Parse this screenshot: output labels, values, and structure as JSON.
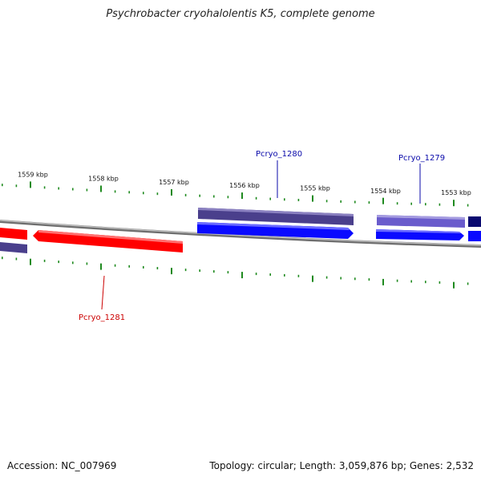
{
  "title": "Psychrobacter cryohalolentis K5, complete genome",
  "accession_text": "Accession: NC_007969",
  "summary_text": "Topology: circular; Length: 3,059,876 bp; Genes: 2,532",
  "colors": {
    "backbone": "#8a8a8a",
    "tick": "#1f8a1f",
    "forward_gene": "#0a0aff",
    "forward_gene_dark": "#4a3f8c",
    "forward_gene_light": "#6a5ccc",
    "forward_gene_navy": "#0a0a70",
    "reverse_gene": "#ff0000",
    "label_forward": "#0a0aaa",
    "label_reverse": "#cc0000"
  },
  "ruler": {
    "labels": [
      "1559 kbp",
      "1558 kbp",
      "1557 kbp",
      "1556 kbp",
      "1555 kbp",
      "1554 kbp",
      "1553 kbp"
    ]
  },
  "genes": [
    {
      "name": "Pcryo_1281",
      "strand": "reverse",
      "labeled": true
    },
    {
      "name": "Pcryo_1280",
      "strand": "forward",
      "labeled": true
    },
    {
      "name": "Pcryo_1279",
      "strand": "forward",
      "labeled": true
    }
  ]
}
